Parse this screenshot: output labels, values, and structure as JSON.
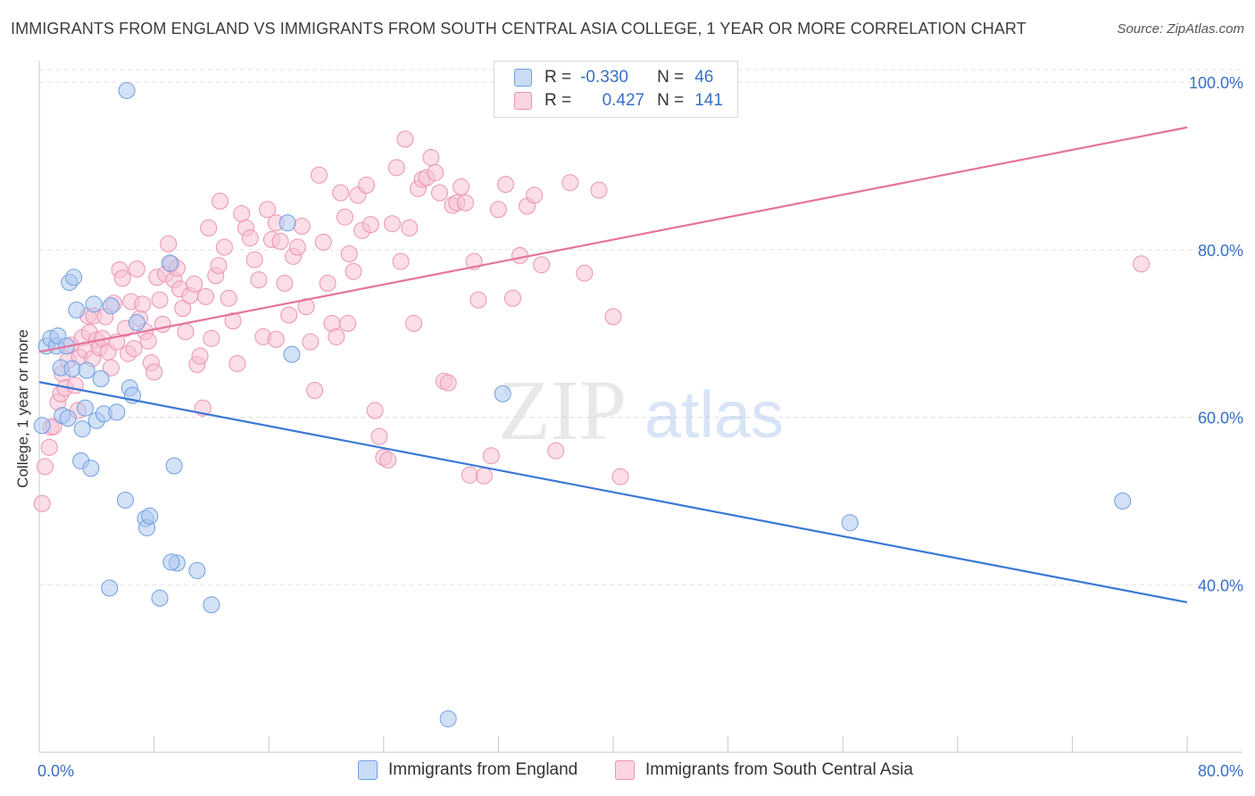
{
  "header": {
    "title": "IMMIGRANTS FROM ENGLAND VS IMMIGRANTS FROM SOUTH CENTRAL ASIA COLLEGE, 1 YEAR OR MORE CORRELATION CHART",
    "source": "Source: ZipAtlas.com"
  },
  "watermark": {
    "zip": "ZIP",
    "atlas": "atlas"
  },
  "legend": {
    "r_label": "R =",
    "n_label": "N =",
    "series": [
      {
        "r": "-0.330",
        "n": "46"
      },
      {
        "r": "0.427",
        "n": "141"
      }
    ]
  },
  "colors": {
    "blue_fill": "#aec9f0",
    "blue_stroke": "#6f9ee0",
    "blue_line": "#3a78d6",
    "pink_fill": "#f7c3d3",
    "pink_stroke": "#eb93b2",
    "pink_line": "#e5739c",
    "tick_label": "#3a6fc4",
    "grid": "#e2e2e2"
  },
  "chart_data": {
    "type": "scatter",
    "title": "IMMIGRANTS FROM ENGLAND VS IMMIGRANTS FROM SOUTH CENTRAL ASIA COLLEGE, 1 YEAR OR MORE CORRELATION CHART",
    "xlabel": "",
    "ylabel": "College, 1 year or more",
    "xlim": [
      0,
      80
    ],
    "ylim": [
      20,
      101.5
    ],
    "x_tick_labels": [
      "0.0%",
      "80.0%"
    ],
    "y_ticks": [
      40,
      60,
      80,
      100
    ],
    "y_tick_labels": [
      "40.0%",
      "60.0%",
      "80.0%",
      "100.0%"
    ],
    "grid": true,
    "legend_position": "top-center",
    "series": [
      {
        "name": "Immigrants from England",
        "r": -0.33,
        "n": 46,
        "trend": {
          "x": [
            0,
            80
          ],
          "y": [
            64.2,
            37.9
          ]
        },
        "points": [
          [
            0.2,
            59.0
          ],
          [
            0.5,
            68.5
          ],
          [
            0.8,
            69.4
          ],
          [
            1.2,
            68.5
          ],
          [
            1.3,
            69.7
          ],
          [
            1.5,
            65.9
          ],
          [
            1.6,
            60.2
          ],
          [
            1.9,
            68.5
          ],
          [
            2.0,
            59.9
          ],
          [
            2.1,
            76.1
          ],
          [
            2.3,
            65.8
          ],
          [
            2.4,
            76.7
          ],
          [
            2.6,
            72.8
          ],
          [
            2.9,
            54.8
          ],
          [
            3.0,
            58.6
          ],
          [
            3.2,
            61.1
          ],
          [
            3.3,
            65.6
          ],
          [
            3.6,
            53.9
          ],
          [
            3.8,
            73.5
          ],
          [
            4.0,
            59.6
          ],
          [
            4.3,
            64.6
          ],
          [
            4.5,
            60.4
          ],
          [
            4.9,
            39.6
          ],
          [
            5.0,
            73.3
          ],
          [
            5.4,
            60.6
          ],
          [
            6.0,
            50.1
          ],
          [
            6.1,
            99.0
          ],
          [
            6.3,
            63.5
          ],
          [
            6.5,
            62.6
          ],
          [
            6.8,
            71.3
          ],
          [
            9.4,
            54.2
          ],
          [
            7.4,
            47.9
          ],
          [
            7.5,
            46.8
          ],
          [
            7.7,
            48.2
          ],
          [
            8.4,
            38.4
          ],
          [
            9.1,
            78.4
          ],
          [
            9.6,
            42.6
          ],
          [
            9.2,
            42.7
          ],
          [
            11.0,
            41.7
          ],
          [
            12.0,
            37.6
          ],
          [
            17.6,
            67.5
          ],
          [
            17.3,
            83.2
          ],
          [
            28.5,
            24.0
          ],
          [
            32.3,
            62.8
          ],
          [
            56.5,
            47.4
          ],
          [
            75.5,
            50.0
          ]
        ]
      },
      {
        "name": "Immigrants from South Central Asia",
        "r": 0.427,
        "n": 141,
        "trend": {
          "x": [
            0,
            80
          ],
          "y": [
            67.8,
            94.6
          ]
        },
        "points": [
          [
            0.2,
            49.7
          ],
          [
            0.4,
            54.1
          ],
          [
            0.7,
            56.4
          ],
          [
            0.8,
            58.8
          ],
          [
            1.0,
            58.9
          ],
          [
            1.3,
            61.8
          ],
          [
            1.5,
            62.8
          ],
          [
            1.6,
            65.2
          ],
          [
            1.8,
            63.5
          ],
          [
            2.0,
            66.8
          ],
          [
            2.2,
            68.6
          ],
          [
            2.5,
            63.8
          ],
          [
            2.7,
            60.8
          ],
          [
            2.8,
            67.2
          ],
          [
            3.0,
            69.5
          ],
          [
            3.2,
            68.0
          ],
          [
            3.4,
            72.1
          ],
          [
            3.5,
            70.1
          ],
          [
            3.7,
            67.0
          ],
          [
            3.8,
            72.1
          ],
          [
            4.0,
            69.2
          ],
          [
            4.2,
            68.3
          ],
          [
            4.4,
            69.4
          ],
          [
            4.6,
            72.0
          ],
          [
            4.8,
            67.8
          ],
          [
            5.0,
            65.9
          ],
          [
            5.2,
            73.6
          ],
          [
            5.4,
            69.0
          ],
          [
            5.6,
            77.6
          ],
          [
            5.8,
            76.6
          ],
          [
            6.0,
            70.6
          ],
          [
            6.2,
            67.6
          ],
          [
            6.4,
            73.8
          ],
          [
            6.6,
            68.2
          ],
          [
            6.8,
            77.7
          ],
          [
            7.0,
            71.8
          ],
          [
            7.2,
            73.5
          ],
          [
            7.4,
            70.2
          ],
          [
            7.6,
            69.1
          ],
          [
            7.8,
            66.5
          ],
          [
            8.0,
            65.4
          ],
          [
            8.2,
            76.7
          ],
          [
            8.4,
            74.0
          ],
          [
            8.6,
            71.1
          ],
          [
            8.8,
            77.1
          ],
          [
            9.0,
            80.7
          ],
          [
            9.2,
            78.3
          ],
          [
            9.4,
            76.4
          ],
          [
            9.6,
            77.8
          ],
          [
            9.8,
            75.3
          ],
          [
            10.0,
            73.0
          ],
          [
            10.2,
            70.2
          ],
          [
            10.5,
            74.5
          ],
          [
            10.8,
            75.9
          ],
          [
            11.0,
            66.3
          ],
          [
            11.2,
            67.3
          ],
          [
            11.4,
            61.1
          ],
          [
            11.6,
            74.4
          ],
          [
            11.8,
            82.6
          ],
          [
            12.0,
            69.4
          ],
          [
            12.3,
            76.9
          ],
          [
            12.6,
            85.8
          ],
          [
            12.9,
            80.3
          ],
          [
            13.2,
            74.2
          ],
          [
            13.5,
            71.5
          ],
          [
            13.8,
            66.4
          ],
          [
            14.1,
            84.3
          ],
          [
            14.4,
            82.6
          ],
          [
            14.7,
            81.4
          ],
          [
            15.0,
            78.8
          ],
          [
            15.3,
            76.4
          ],
          [
            15.6,
            69.6
          ],
          [
            15.9,
            84.8
          ],
          [
            16.2,
            81.2
          ],
          [
            16.5,
            83.2
          ],
          [
            16.8,
            81.0
          ],
          [
            17.1,
            76.0
          ],
          [
            17.4,
            72.2
          ],
          [
            17.7,
            79.2
          ],
          [
            18.0,
            80.3
          ],
          [
            18.3,
            82.8
          ],
          [
            18.6,
            73.2
          ],
          [
            18.9,
            69.0
          ],
          [
            19.2,
            63.2
          ],
          [
            19.5,
            88.9
          ],
          [
            19.8,
            80.9
          ],
          [
            20.1,
            76.0
          ],
          [
            20.4,
            71.2
          ],
          [
            20.7,
            69.6
          ],
          [
            21.0,
            86.8
          ],
          [
            21.3,
            83.9
          ],
          [
            21.6,
            79.5
          ],
          [
            21.9,
            77.4
          ],
          [
            22.2,
            86.5
          ],
          [
            22.5,
            82.3
          ],
          [
            22.8,
            87.7
          ],
          [
            23.1,
            83.0
          ],
          [
            23.4,
            60.8
          ],
          [
            23.7,
            57.7
          ],
          [
            24.0,
            55.2
          ],
          [
            24.3,
            54.9
          ],
          [
            24.6,
            83.1
          ],
          [
            24.9,
            89.8
          ],
          [
            25.2,
            78.6
          ],
          [
            25.5,
            93.2
          ],
          [
            25.8,
            82.6
          ],
          [
            26.1,
            71.2
          ],
          [
            26.4,
            87.3
          ],
          [
            26.7,
            88.4
          ],
          [
            27.0,
            88.6
          ],
          [
            27.3,
            91.0
          ],
          [
            27.6,
            89.2
          ],
          [
            27.9,
            86.8
          ],
          [
            28.2,
            64.3
          ],
          [
            28.5,
            64.1
          ],
          [
            28.8,
            85.3
          ],
          [
            29.1,
            85.6
          ],
          [
            29.4,
            87.5
          ],
          [
            29.7,
            85.6
          ],
          [
            30.0,
            53.1
          ],
          [
            30.3,
            78.6
          ],
          [
            30.6,
            74.0
          ],
          [
            31.0,
            53.0
          ],
          [
            31.5,
            55.4
          ],
          [
            32.0,
            84.8
          ],
          [
            32.5,
            87.8
          ],
          [
            33.0,
            74.2
          ],
          [
            33.5,
            79.3
          ],
          [
            34.0,
            85.2
          ],
          [
            34.5,
            86.5
          ],
          [
            35.0,
            78.2
          ],
          [
            36.0,
            56.0
          ],
          [
            37.0,
            88.0
          ],
          [
            38.0,
            77.2
          ],
          [
            39.0,
            87.1
          ],
          [
            40.0,
            72.0
          ],
          [
            40.5,
            52.9
          ],
          [
            76.8,
            78.3
          ],
          [
            12.5,
            78.1
          ],
          [
            16.5,
            69.3
          ],
          [
            21.5,
            71.2
          ]
        ]
      }
    ]
  }
}
